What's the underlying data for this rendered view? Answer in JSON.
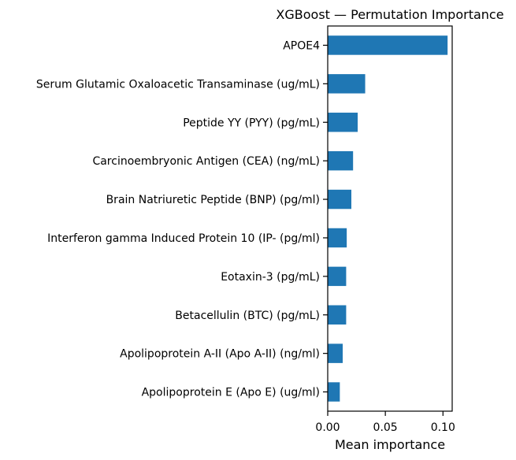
{
  "chart_data": {
    "type": "bar",
    "orientation": "horizontal",
    "title": "XGBoost — Permutation Importance",
    "xlabel": "Mean importance",
    "ylabel": "",
    "xlim": [
      0,
      0.108
    ],
    "xticks": [
      0.0,
      0.05,
      0.1
    ],
    "xtick_labels": [
      "0.00",
      "0.05",
      "0.10"
    ],
    "grid": false,
    "bar_color": "#1f77b4",
    "categories": [
      "APOE4",
      "Serum Glutamic Oxaloacetic Transaminase (ug/mL)",
      "Peptide YY (PYY) (pg/mL)",
      "Carcinoembryonic Antigen (CEA) (ng/mL)",
      "Brain Natriuretic Peptide  (BNP) (pg/ml)",
      "Interferon gamma Induced Protein 10 (IP- (pg/ml)",
      "Eotaxin-3 (pg/mL)",
      "Betacellulin (BTC) (pg/mL)",
      "Apolipoprotein A-II (Apo A-II) (ng/ml)",
      "Apolipoprotein E (Apo E) (ug/ml)"
    ],
    "values": [
      0.104,
      0.0325,
      0.026,
      0.022,
      0.0205,
      0.0165,
      0.016,
      0.016,
      0.013,
      0.0105
    ]
  }
}
